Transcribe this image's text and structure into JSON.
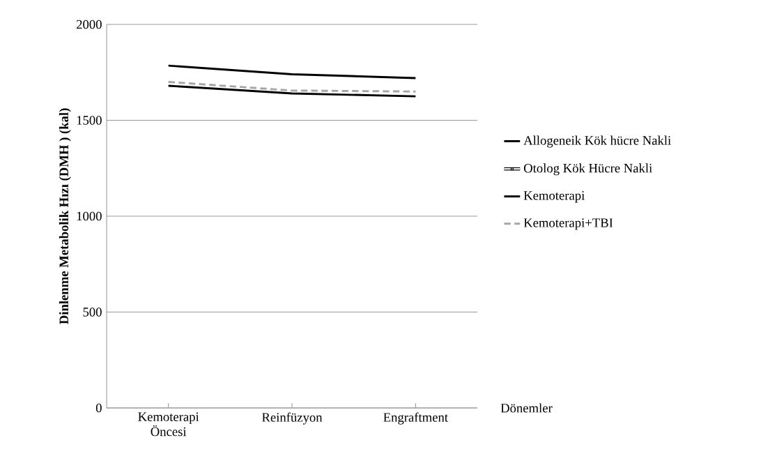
{
  "chart_data": {
    "type": "line",
    "ylabel": "Dinlenme Metabolik Hızı  (DMH ) (kal)",
    "xlabel": "Dönemler",
    "categories": [
      "Kemoterapi Öncesi",
      "Reinfüzyon",
      "Engraftment"
    ],
    "ylim": [
      0,
      2000
    ],
    "yticks": [
      0,
      500,
      1000,
      1500,
      2000
    ],
    "grid": "y",
    "legend": "right",
    "series": [
      {
        "name": "Allogeneik Kök hücre Nakli",
        "color": "#000000",
        "values": [
          1680,
          1640,
          1625
        ]
      },
      {
        "name": "Otolog Kök Hücre Nakli",
        "color": "#ffffff",
        "marker": "circle",
        "values": [
          null,
          null,
          null
        ]
      },
      {
        "name": "Kemoterapi",
        "color": "#000000",
        "values": [
          1785,
          1740,
          1720
        ]
      },
      {
        "name": "Kemoterapi+TBI",
        "color": "#a6a6a6",
        "line_style": "dashed",
        "values": [
          1700,
          1655,
          1650
        ]
      }
    ]
  }
}
